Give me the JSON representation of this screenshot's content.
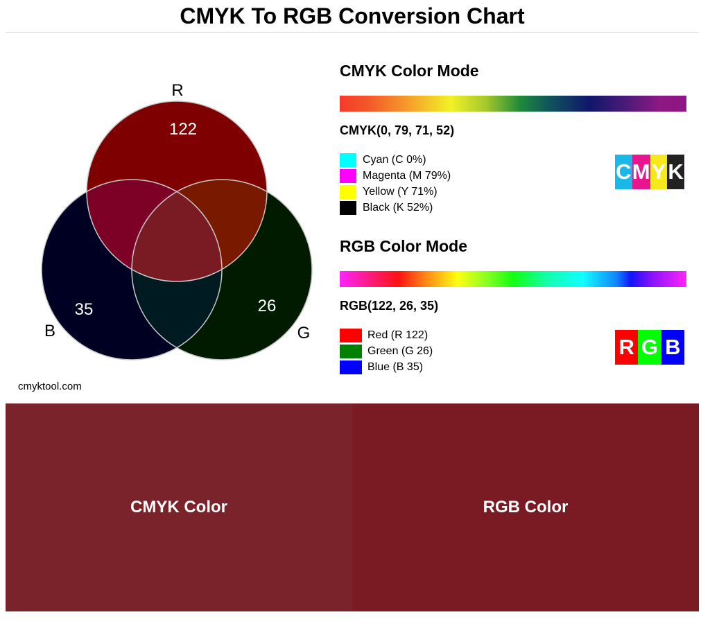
{
  "title": "CMYK To RGB Conversion Chart",
  "venn": {
    "labels": {
      "r": "R",
      "g": "G",
      "b": "B"
    },
    "values": {
      "r": "122",
      "g": "26",
      "b": "35"
    },
    "colors": {
      "r": "#7f0000",
      "g": "#001b00",
      "b": "#000022",
      "rb": "#7d0026",
      "rg": "#791a00",
      "gb": "#001a22",
      "center": "#7a1a23"
    }
  },
  "site": "cmyktool.com",
  "cmyk_mode": {
    "heading": "CMYK Color Mode",
    "value": "CMYK(0, 79, 71, 52)",
    "legend": [
      {
        "label": "Cyan (C 0%)",
        "color": "#00ffff"
      },
      {
        "label": "Magenta (M 79%)",
        "color": "#ff00ff"
      },
      {
        "label": "Yellow (Y 71%)",
        "color": "#ffff00"
      },
      {
        "label": "Black (K 52%)",
        "color": "#000000"
      }
    ],
    "logo": [
      {
        "letter": "C",
        "color": "#1ab8e6"
      },
      {
        "letter": "M",
        "color": "#e8158c"
      },
      {
        "letter": "Y",
        "color": "#f7e81b"
      },
      {
        "letter": "K",
        "color": "#222222"
      }
    ]
  },
  "rgb_mode": {
    "heading": "RGB Color Mode",
    "value": "RGB(122, 26, 35)",
    "legend": [
      {
        "label": "Red (R 122)",
        "color": "#ff0000"
      },
      {
        "label": "Green (G 26)",
        "color": "#008000"
      },
      {
        "label": "Blue (B 35)",
        "color": "#0000ff"
      }
    ],
    "logo": [
      {
        "letter": "R",
        "color": "#ff0000"
      },
      {
        "letter": "G",
        "color": "#00ff00"
      },
      {
        "letter": "B",
        "color": "#0000ff"
      }
    ]
  },
  "bottom": {
    "cmyk": {
      "label": "CMYK Color",
      "color": "#7a232b"
    },
    "rgb": {
      "label": "RGB Color",
      "color": "#7a1a23"
    }
  }
}
